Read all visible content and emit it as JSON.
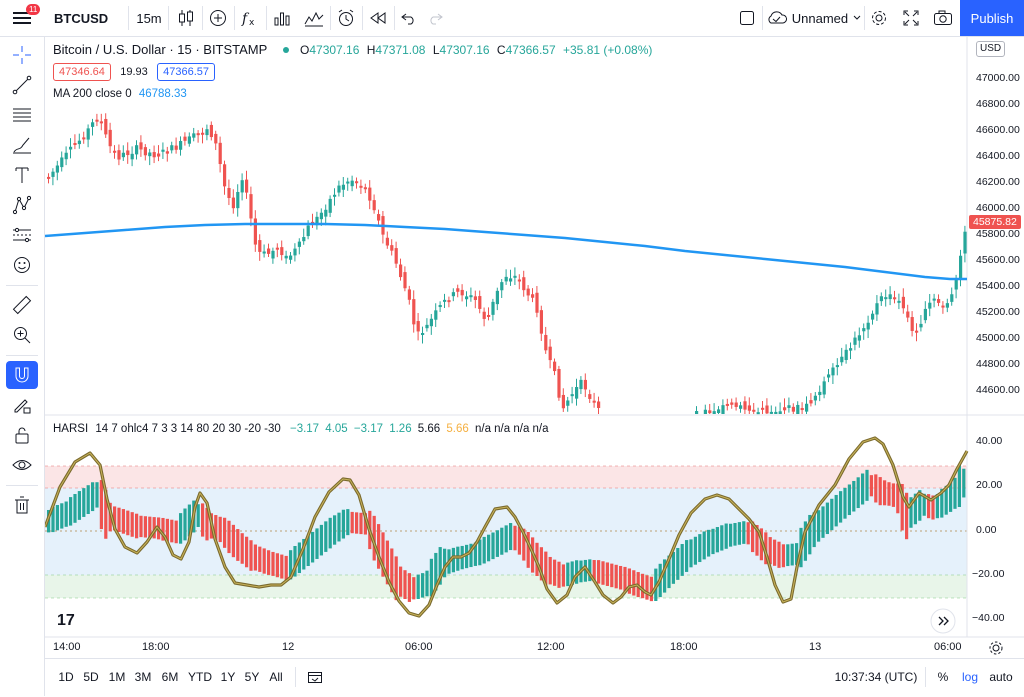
{
  "toolbar": {
    "menu_badge": "11",
    "symbol": "BTCUSD",
    "interval": "15m",
    "layout_name": "Unnamed",
    "publish_label": "Publish"
  },
  "legend": {
    "title": "Bitcoin / U.S. Dollar · 15 · BITSTAMP",
    "o_label": "O",
    "o_value": "47307.16",
    "h_label": "H",
    "h_value": "47371.08",
    "l_label": "L",
    "l_value": "47307.16",
    "c_label": "C",
    "c_value": "47366.57",
    "change": "+35.81 (+0.08%)",
    "bid": "47346.64",
    "spread": "19.93",
    "ask": "47366.57",
    "ma_label": "MA 200 close 0",
    "ma_value": "46788.33"
  },
  "price_axis": {
    "currency": "USD",
    "ticks": [
      "47000.00",
      "46800.00",
      "46600.00",
      "46400.00",
      "46200.00",
      "46000.00",
      "45800.00",
      "45600.00",
      "45400.00",
      "45200.00",
      "45000.00",
      "44800.00",
      "44600.00"
    ],
    "current_price": "45875.82"
  },
  "harsi": {
    "name": "HARSI",
    "params": "14 7 ohlc4 7 3 3 14 80 20 30 -20 -30",
    "v1": "−3.17",
    "v2": "4.05",
    "v3": "−3.17",
    "v4": "1.26",
    "v5": "5.66",
    "v6": "5.66",
    "na": "n/a n/a n/a n/a",
    "ticks": [
      "40.00",
      "20.00",
      "0.00",
      "−20.00",
      "−40.00"
    ]
  },
  "time_axis": {
    "labels": [
      "14:00",
      "18:00",
      "12",
      "06:00",
      "12:00",
      "18:00",
      "13",
      "06:00"
    ]
  },
  "bottom": {
    "ranges": [
      "1D",
      "5D",
      "1M",
      "3M",
      "6M",
      "YTD",
      "1Y",
      "5Y",
      "All"
    ],
    "clock": "10:37:34 (UTC)",
    "percent": "%",
    "log": "log",
    "auto": "auto"
  },
  "colors": {
    "up": "#26a69a",
    "down": "#ef5350",
    "ma": "#2196f3",
    "accent": "#2962ff",
    "harsi_line": "#8a7a3a"
  },
  "chart_data": {
    "type": "candlestick",
    "series": [
      {
        "name": "MA 200 close 0",
        "last": 46788.33
      },
      {
        "name": "HARSI",
        "last": 5.66
      }
    ],
    "ylim": [
      44400,
      47200
    ],
    "harsi_ylim": [
      -40,
      40
    ]
  }
}
